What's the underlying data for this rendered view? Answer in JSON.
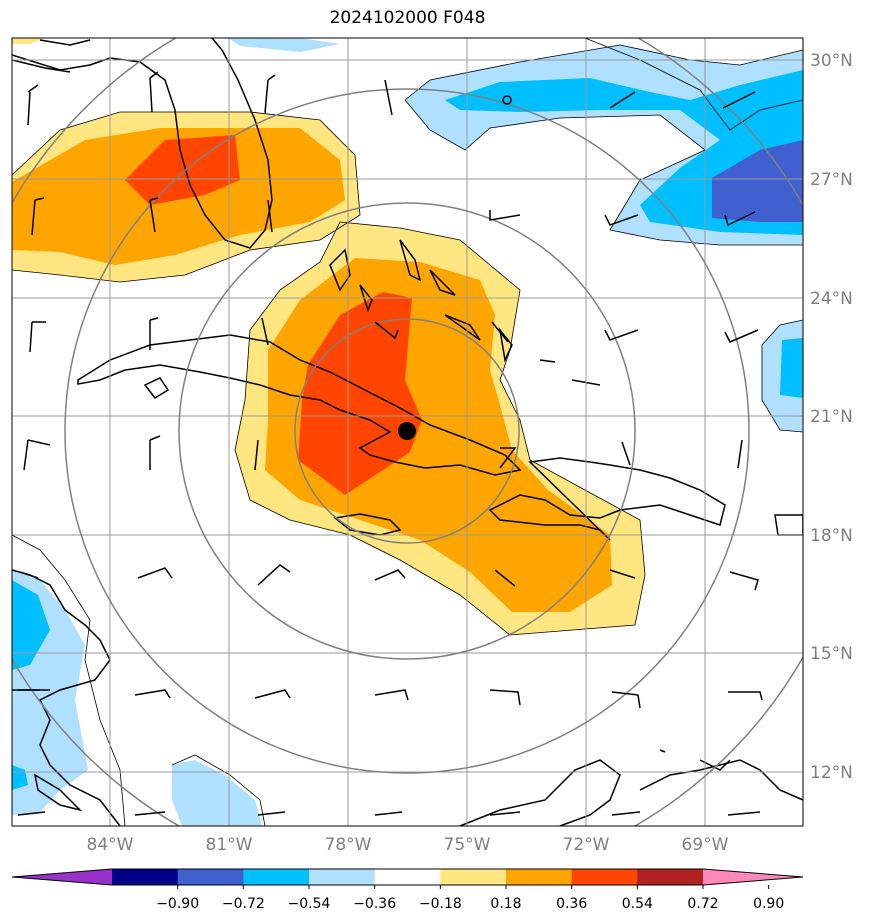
{
  "title": "2024102000 F048",
  "lon_labels": [
    "84°W",
    "81°W",
    "78°W",
    "75°W",
    "72°W",
    "69°W"
  ],
  "lat_labels": [
    "30°N",
    "27°N",
    "24°N",
    "21°N",
    "18°N",
    "15°N",
    "12°N"
  ],
  "colorbar": {
    "ticks": [
      "−0.90",
      "−0.72",
      "−0.54",
      "−0.36",
      "−0.18",
      "0.18",
      "0.36",
      "0.54",
      "0.72",
      "0.90"
    ],
    "colors": [
      "#9932cc",
      "#00008b",
      "#4060d0",
      "#00bfff",
      "#b0e0ff",
      "#ffffff",
      "#ffe680",
      "#ffa500",
      "#ff4500",
      "#b22222",
      "#ff88bb"
    ]
  },
  "storm_center": {
    "lon": "76.5°W",
    "lat": "20.6°N"
  }
}
